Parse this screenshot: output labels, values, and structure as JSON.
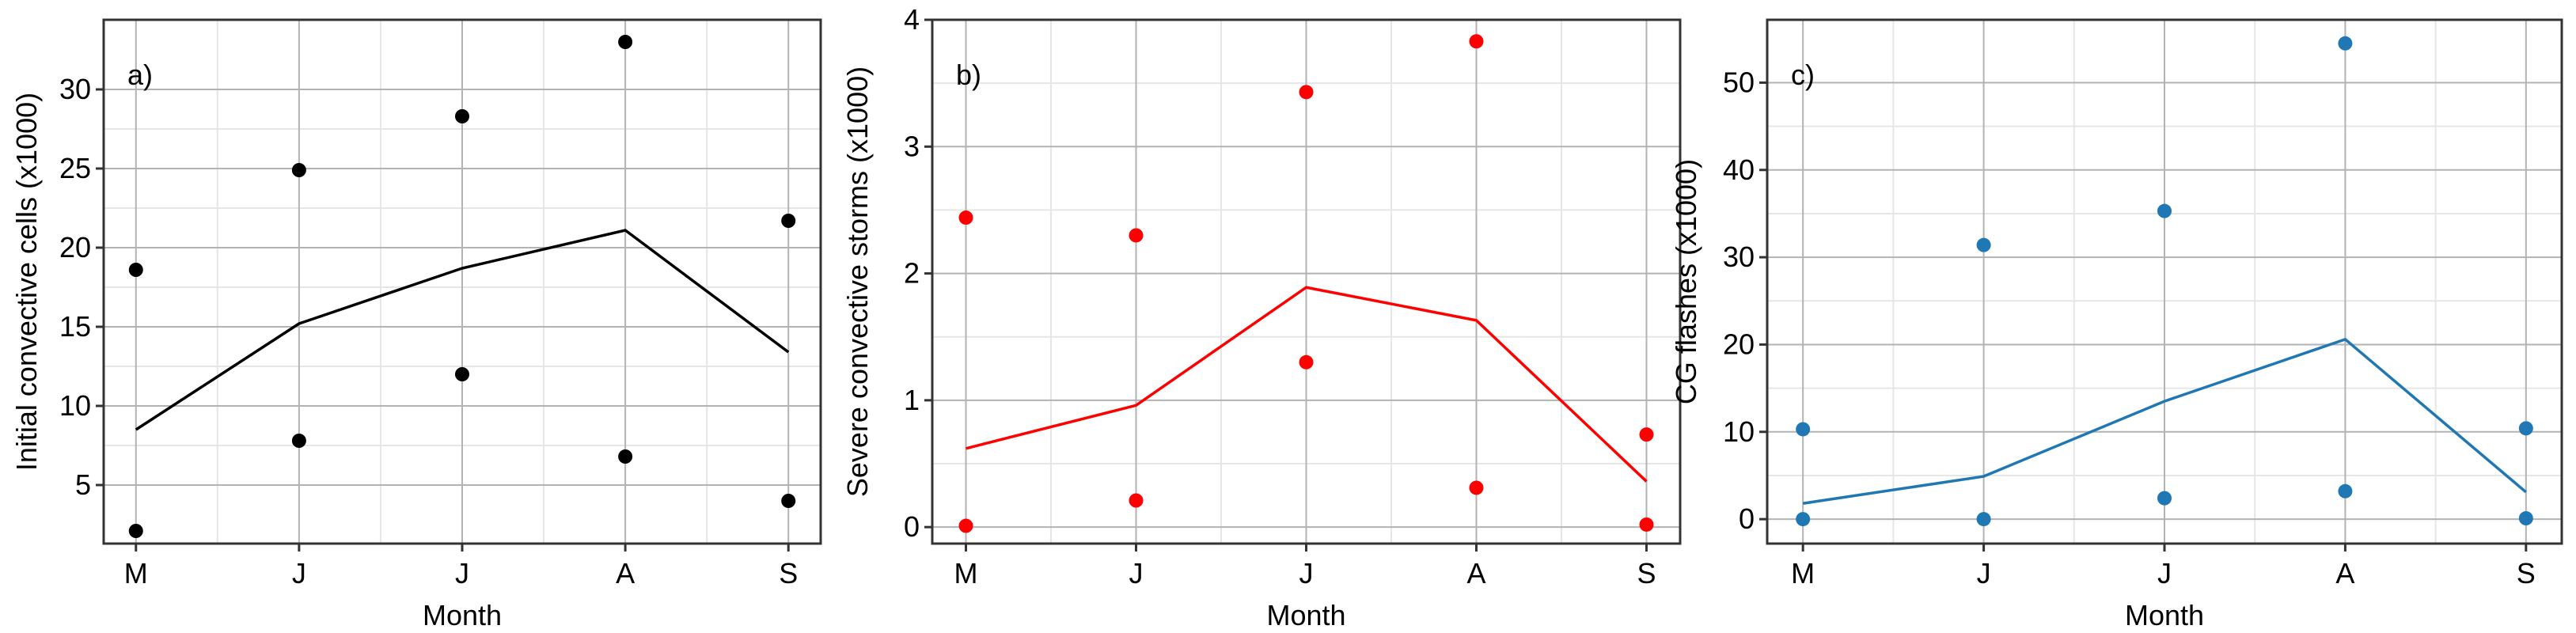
{
  "chart_data": [
    {
      "type": "line",
      "panel_label": "a)",
      "xlabel": "Month",
      "ylabel": "Initial convective cells (x1000)",
      "categories": [
        "M",
        "J",
        "J",
        "A",
        "S"
      ],
      "ylim": [
        1.3,
        34.4
      ],
      "yticks": [
        5,
        10,
        15,
        20,
        25,
        30
      ],
      "grid": true,
      "color": "#000000",
      "mean": [
        8.5,
        15.2,
        18.7,
        21.1,
        13.4
      ],
      "max": [
        18.6,
        24.9,
        28.3,
        33.0,
        21.7
      ],
      "min": [
        2.1,
        7.8,
        12.0,
        6.8,
        4.0
      ]
    },
    {
      "type": "line",
      "panel_label": "b)",
      "xlabel": "Month",
      "ylabel": "Severe convective storms (x1000)",
      "categories": [
        "M",
        "J",
        "J",
        "A",
        "S"
      ],
      "ylim": [
        -0.13,
        4.0
      ],
      "yticks": [
        0,
        1,
        2,
        3,
        4
      ],
      "grid": true,
      "color": "#ff0000",
      "mean": [
        0.62,
        0.96,
        1.89,
        1.63,
        0.36
      ],
      "max": [
        2.44,
        2.3,
        3.43,
        3.83,
        0.73
      ],
      "min": [
        0.01,
        0.21,
        1.3,
        0.31,
        0.02
      ]
    },
    {
      "type": "line",
      "panel_label": "c)",
      "xlabel": "Month",
      "ylabel": "CG flashes (x1000)",
      "categories": [
        "M",
        "J",
        "J",
        "A",
        "S"
      ],
      "ylim": [
        -2.8,
        57.2
      ],
      "yticks": [
        0,
        10,
        20,
        30,
        40,
        50
      ],
      "grid": true,
      "color": "#1f77b4",
      "mean": [
        1.8,
        4.9,
        13.5,
        20.6,
        3.1
      ],
      "max": [
        10.3,
        31.4,
        35.3,
        54.5,
        10.4
      ],
      "min": [
        0.0,
        0.0,
        2.4,
        3.2,
        0.1
      ]
    }
  ]
}
